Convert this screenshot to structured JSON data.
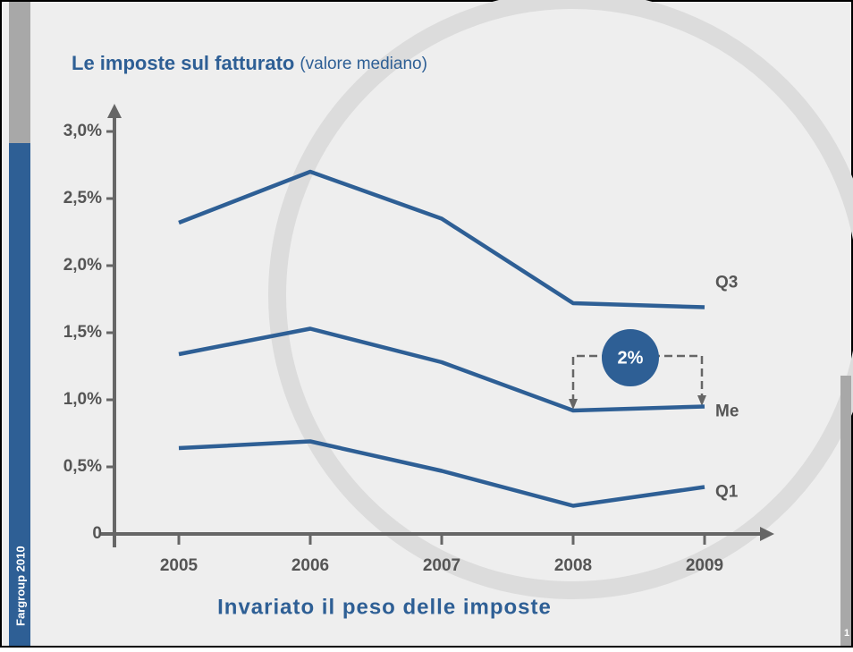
{
  "chart_data": {
    "type": "line",
    "title": "Le imposte sul fatturato",
    "subtitle": "(valore mediano)",
    "categories": [
      "2005",
      "2006",
      "2007",
      "2008",
      "2009"
    ],
    "series": [
      {
        "name": "Q3",
        "color": "#2e5f95",
        "values": [
          2.32,
          2.7,
          2.35,
          1.72,
          1.69
        ]
      },
      {
        "name": "Me",
        "color": "#2e5f95",
        "values": [
          1.34,
          1.53,
          1.28,
          0.92,
          0.95
        ]
      },
      {
        "name": "Q1",
        "color": "#2e5f95",
        "values": [
          0.64,
          0.69,
          0.47,
          0.21,
          0.35
        ]
      }
    ],
    "ylim": [
      0,
      3.2
    ],
    "yticks": [
      0,
      {
        "value": 0.5,
        "label": "0,5%"
      },
      {
        "value": 1.0,
        "label": "1,0%"
      },
      {
        "value": 1.5,
        "label": "1,5%"
      },
      {
        "value": 2.0,
        "label": "2,0%"
      },
      {
        "value": 2.5,
        "label": "2,5%"
      },
      {
        "value": 3.0,
        "label": "3,0%"
      }
    ],
    "annotation": "2%",
    "caption": "Invariato il peso delle imposte"
  },
  "slide": {
    "side_label": "Fargroup 2010",
    "page_number": "1"
  }
}
